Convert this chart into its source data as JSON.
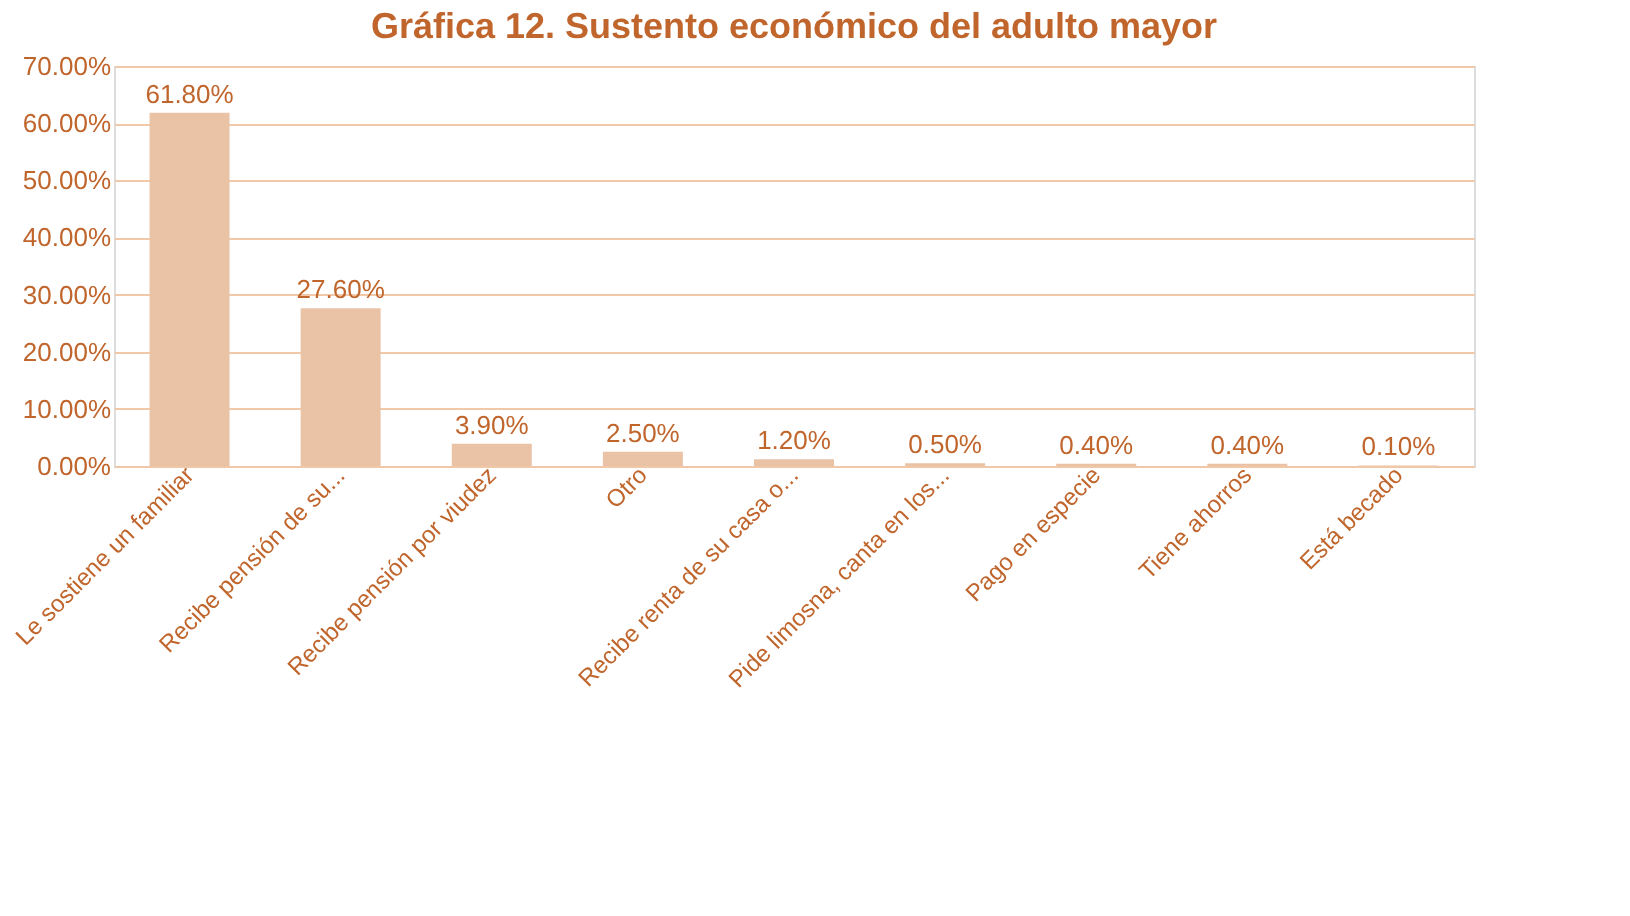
{
  "chart_data": {
    "type": "bar",
    "title": "Gráfica 12. Sustento económico del adulto mayor",
    "categories": [
      "Le sostiene un familiar",
      "Recibe pensión de su...",
      "Recibe pensión por viudez",
      "Otro",
      "Recibe renta de su casa o...",
      "Pide limosna, canta en los...",
      "Pago en especie",
      "Tiene ahorros",
      "Está becado"
    ],
    "values": [
      61.8,
      27.6,
      3.9,
      2.5,
      1.2,
      0.5,
      0.4,
      0.4,
      0.1
    ],
    "value_labels": [
      "61.80%",
      "27.60%",
      "3.90%",
      "2.50%",
      "1.20%",
      "0.50%",
      "0.40%",
      "0.40%",
      "0.10%"
    ],
    "color": "#eac3a7",
    "ylim": [
      0,
      70
    ],
    "yticks": [
      {
        "value": 0,
        "label": "0.00%"
      },
      {
        "value": 10,
        "label": "10.00%"
      },
      {
        "value": 20,
        "label": "20.00%"
      },
      {
        "value": 30,
        "label": "30.00%"
      },
      {
        "value": 40,
        "label": "40.00%"
      },
      {
        "value": 50,
        "label": "50.00%"
      },
      {
        "value": 60,
        "label": "60.00%"
      },
      {
        "value": 70,
        "label": "70.00%"
      }
    ],
    "grid": "y"
  }
}
